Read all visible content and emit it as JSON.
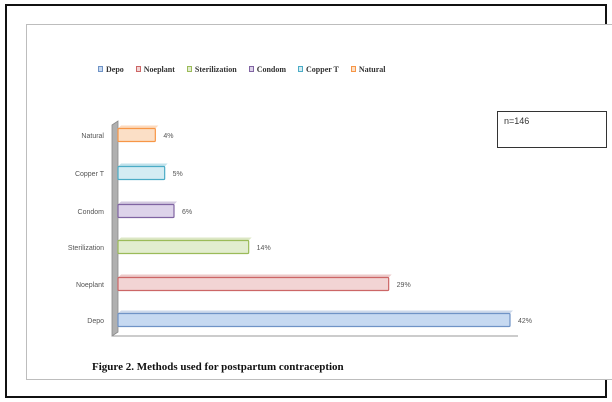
{
  "legend": {
    "items": [
      {
        "label": "Depo",
        "fill": "#c6d9f1",
        "stroke": "#6f93c6"
      },
      {
        "label": "Noeplant",
        "fill": "#f2d4d4",
        "stroke": "#cc6666"
      },
      {
        "label": "Sterilization",
        "fill": "#e2edcf",
        "stroke": "#9bbb59"
      },
      {
        "label": "Condom",
        "fill": "#ddd3ea",
        "stroke": "#8064a2"
      },
      {
        "label": "Copper T",
        "fill": "#d4ecf3",
        "stroke": "#4bacc6"
      },
      {
        "label": "Natural",
        "fill": "#fbdfc6",
        "stroke": "#f79646"
      }
    ]
  },
  "note": "n=146",
  "caption": "Figure 2. Methods used for postpartum contraception",
  "chart_data": {
    "type": "bar",
    "orientation": "horizontal",
    "categories": [
      "Natural",
      "Copper T",
      "Condom",
      "Sterilization",
      "Noeplant",
      "Depo"
    ],
    "values": [
      4,
      5,
      6,
      14,
      29,
      42
    ],
    "data_labels": [
      "4%",
      "5%",
      "6%",
      "14%",
      "29%",
      "42%"
    ],
    "colors": [
      {
        "fill": "#fbdfc6",
        "stroke": "#f79646"
      },
      {
        "fill": "#d4ecf3",
        "stroke": "#4bacc6"
      },
      {
        "fill": "#ddd3ea",
        "stroke": "#8064a2"
      },
      {
        "fill": "#e2edcf",
        "stroke": "#9bbb59"
      },
      {
        "fill": "#f2d4d4",
        "stroke": "#cc6666"
      },
      {
        "fill": "#c6d9f1",
        "stroke": "#6f93c6"
      }
    ],
    "xlim": [
      0,
      42
    ],
    "legend_position": "top",
    "grid": false
  }
}
